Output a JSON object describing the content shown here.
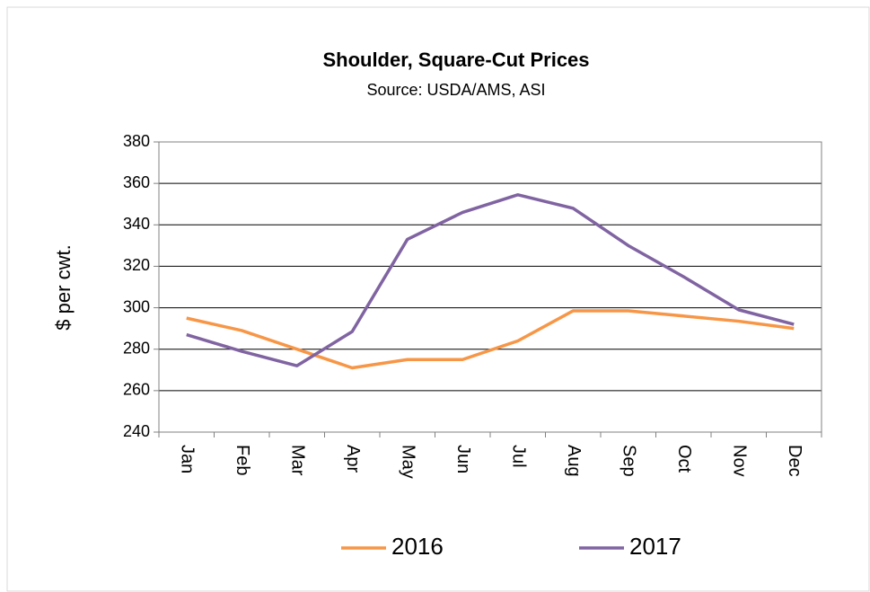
{
  "chart_data": {
    "type": "line",
    "title": "Shoulder, Square-Cut Prices",
    "subtitle": "Source: USDA/AMS, ASI",
    "y_label": "$ per cwt.",
    "categories": [
      "Jan",
      "Feb",
      "Mar",
      "Apr",
      "May",
      "Jun",
      "Jul",
      "Aug",
      "Sep",
      "Oct",
      "Nov",
      "Dec"
    ],
    "series": [
      {
        "name": "2016",
        "color": "#f79646",
        "values": [
          295,
          289,
          280,
          271,
          275,
          275,
          284,
          298.5,
          298.5,
          296,
          293.5,
          290
        ]
      },
      {
        "name": "2017",
        "color": "#8064a2",
        "values": [
          287,
          279,
          272,
          288.5,
          333,
          346,
          354.5,
          348,
          330,
          315,
          299,
          292
        ]
      }
    ],
    "ylim": [
      240,
      380
    ],
    "yticks": [
      240,
      260,
      280,
      300,
      320,
      340,
      360,
      380
    ],
    "grid": true,
    "legend": "bottom"
  }
}
